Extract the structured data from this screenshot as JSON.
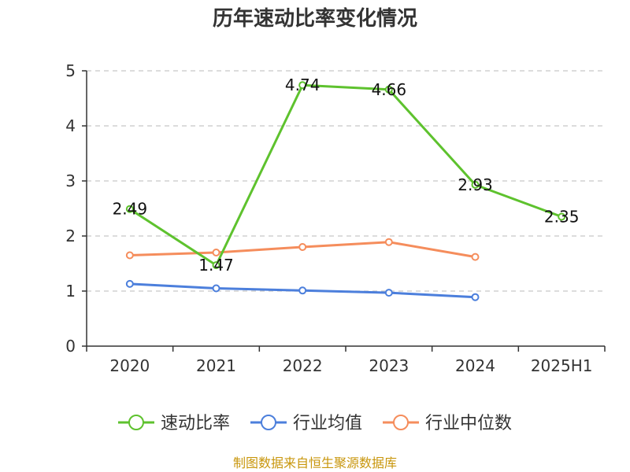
{
  "chart_data": {
    "type": "line",
    "title": "历年速动比率变化情况",
    "categories": [
      "2020",
      "2021",
      "2022",
      "2023",
      "2024",
      "2025H1"
    ],
    "ylim": [
      0,
      5
    ],
    "yticks": [
      "0",
      "1",
      "2",
      "3",
      "4",
      "5"
    ],
    "grid": true,
    "legend_position": "bottom",
    "series": [
      {
        "name": "速动比率",
        "color": "#5ec22e",
        "values": [
          2.49,
          1.47,
          4.74,
          4.66,
          2.93,
          2.35
        ],
        "labels": [
          "2.49",
          "1.47",
          "4.74",
          "4.66",
          "2.93",
          "2.35"
        ]
      },
      {
        "name": "行业均值",
        "color": "#4c7fdc",
        "values": [
          1.13,
          1.05,
          1.01,
          0.97,
          0.89,
          null
        ]
      },
      {
        "name": "行业中位数",
        "color": "#f58d5c",
        "values": [
          1.65,
          1.7,
          1.8,
          1.89,
          1.62,
          null
        ]
      }
    ],
    "source": "制图数据来自恒生聚源数据库"
  }
}
